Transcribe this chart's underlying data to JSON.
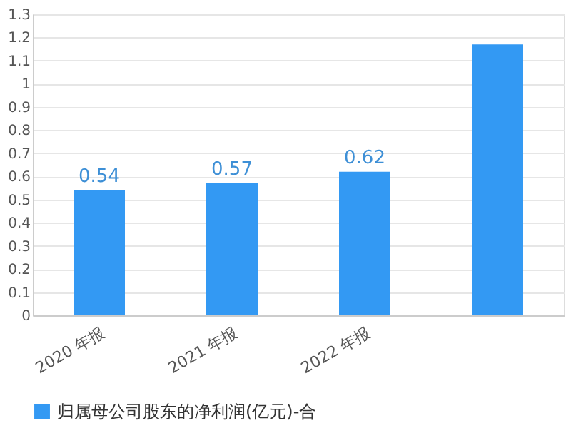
{
  "chart_data": {
    "type": "bar",
    "categories": [
      "2020 年报",
      "2021 年报",
      "2022 年报",
      null
    ],
    "series": [
      {
        "name": "归属母公司股东的净利润(亿元)-合",
        "color": "#3399f3",
        "values": [
          0.54,
          0.57,
          0.62,
          1.17
        ],
        "value_labels": [
          "0.54",
          "0.57",
          "0.62",
          null
        ]
      }
    ],
    "ylim": [
      0,
      1.3
    ],
    "yticks": [
      0,
      0.1,
      0.2,
      0.3,
      0.4,
      0.5,
      0.6,
      0.7,
      0.8,
      0.9,
      1,
      1.1,
      1.2,
      1.3
    ],
    "grid": "y",
    "legend": "bottom"
  }
}
